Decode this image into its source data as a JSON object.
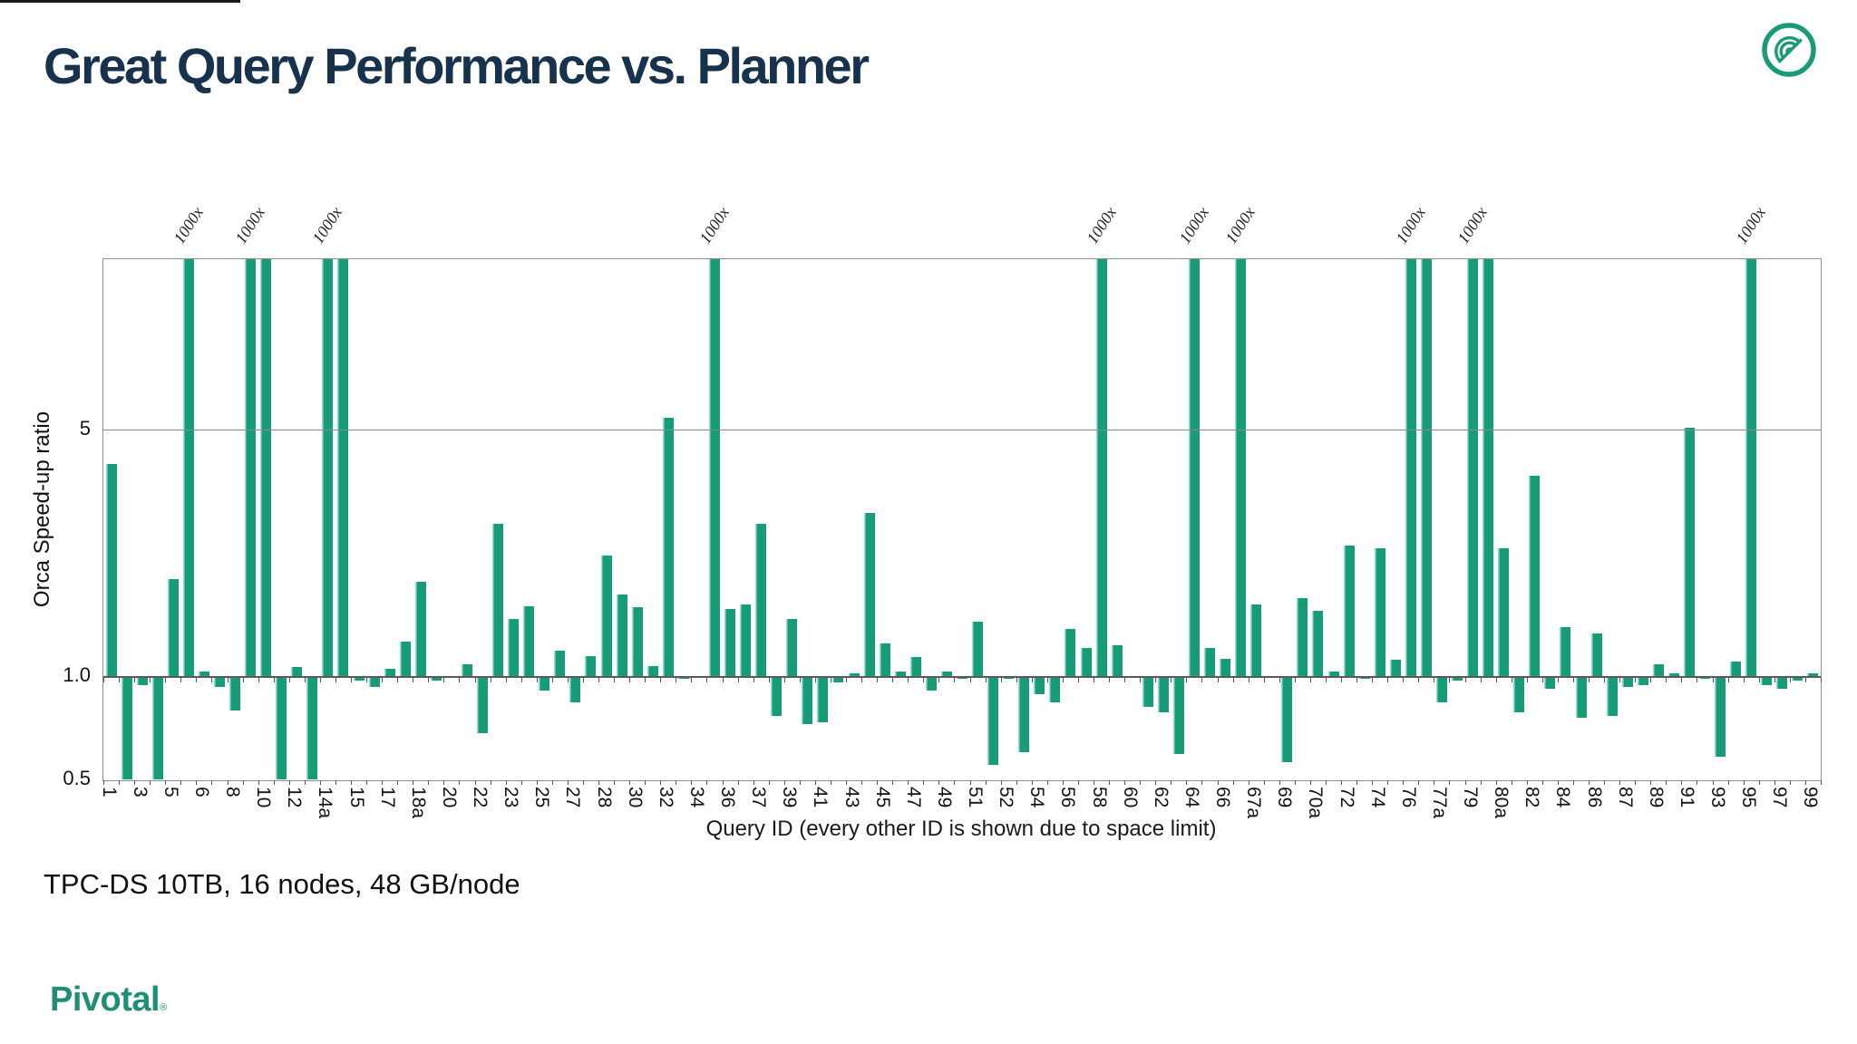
{
  "page": {
    "title": "Great Query Performance vs. Planner",
    "caption": "TPC-DS 10TB, 16 nodes, 48 GB/node",
    "brand": "Pivotal",
    "brand_reg": "®"
  },
  "colors": {
    "bar": "#189c78",
    "bar_edge_highlight": "#90e2cb",
    "title_text": "#17324d",
    "brand_text": "#1e8e74",
    "logo_teal": "#1a9b78",
    "axis_border": "#909090",
    "gridline": "#8a8a8a",
    "baseline_line": "#5a5a5a"
  },
  "chart_data": {
    "type": "bar",
    "title": "",
    "xlabel": "Query ID (every other ID is shown due to space limit)",
    "ylabel": "Orca Speed-up ratio",
    "yscale": "log",
    "ylim": [
      0.5,
      15.3
    ],
    "baseline": 1.0,
    "grid": "horizontal lines at y=5 and y=1.0, outer box border",
    "legend": "none",
    "yticks": [
      {
        "v": 5,
        "label": "5"
      },
      {
        "v": 1,
        "label": "1.0"
      },
      {
        "v": 0.5,
        "label": "0.5"
      }
    ],
    "clipped_value": 1000,
    "clipped_annotation": "1000x",
    "note": "bars = [query_id_label_or_empty, speedup_value, flag]; flag c=bar clipped at top (~1000x), a=1000x text annotation above bar; only every other bar is labeled",
    "bars": [
      [
        "1",
        4.0,
        ""
      ],
      [
        "",
        0.51,
        ""
      ],
      [
        "3",
        0.94,
        ""
      ],
      [
        "",
        0.51,
        ""
      ],
      [
        "5",
        1.88,
        ""
      ],
      [
        "",
        1000,
        "ca"
      ],
      [
        "6",
        1.03,
        ""
      ],
      [
        "",
        0.93,
        ""
      ],
      [
        "8",
        0.8,
        ""
      ],
      [
        "",
        1000,
        "ca"
      ],
      [
        "10",
        1000,
        "c"
      ],
      [
        "",
        0.51,
        ""
      ],
      [
        "12",
        1.06,
        ""
      ],
      [
        "",
        0.51,
        ""
      ],
      [
        "14a",
        1000,
        "ca"
      ],
      [
        "",
        1000,
        "c"
      ],
      [
        "15",
        0.97,
        ""
      ],
      [
        "",
        0.93,
        ""
      ],
      [
        "17",
        1.05,
        ""
      ],
      [
        "",
        1.25,
        ""
      ],
      [
        "18a",
        1.85,
        ""
      ],
      [
        "",
        0.97,
        ""
      ],
      [
        "20",
        0.99,
        ""
      ],
      [
        "",
        1.08,
        ""
      ],
      [
        "22",
        0.69,
        ""
      ],
      [
        "",
        2.7,
        ""
      ],
      [
        "23",
        1.45,
        ""
      ],
      [
        "",
        1.58,
        ""
      ],
      [
        "25",
        0.91,
        ""
      ],
      [
        "",
        1.18,
        ""
      ],
      [
        "27",
        0.84,
        ""
      ],
      [
        "",
        1.14,
        ""
      ],
      [
        "28",
        2.2,
        ""
      ],
      [
        "",
        1.7,
        ""
      ],
      [
        "30",
        1.57,
        ""
      ],
      [
        "",
        1.07,
        ""
      ],
      [
        "32",
        5.4,
        ""
      ],
      [
        "",
        0.98,
        ""
      ],
      [
        "34",
        0.99,
        ""
      ],
      [
        "",
        1000,
        "ca"
      ],
      [
        "36",
        1.55,
        ""
      ],
      [
        "",
        1.6,
        ""
      ],
      [
        "37",
        2.7,
        ""
      ],
      [
        "",
        0.77,
        ""
      ],
      [
        "39",
        1.45,
        ""
      ],
      [
        "",
        0.73,
        ""
      ],
      [
        "41",
        0.74,
        ""
      ],
      [
        "",
        0.96,
        ""
      ],
      [
        "43",
        1.02,
        ""
      ],
      [
        "",
        2.9,
        ""
      ],
      [
        "45",
        1.24,
        ""
      ],
      [
        "",
        1.03,
        ""
      ],
      [
        "47",
        1.13,
        ""
      ],
      [
        "",
        0.91,
        ""
      ],
      [
        "49",
        1.03,
        ""
      ],
      [
        "",
        0.98,
        ""
      ],
      [
        "51",
        1.43,
        ""
      ],
      [
        "",
        0.56,
        ""
      ],
      [
        "52",
        0.98,
        ""
      ],
      [
        "",
        0.61,
        ""
      ],
      [
        "54",
        0.89,
        ""
      ],
      [
        "",
        0.84,
        ""
      ],
      [
        "56",
        1.36,
        ""
      ],
      [
        "",
        1.2,
        ""
      ],
      [
        "58",
        1000,
        "ca"
      ],
      [
        "",
        1.22,
        ""
      ],
      [
        "60",
        1.0,
        ""
      ],
      [
        "",
        0.82,
        ""
      ],
      [
        "62",
        0.79,
        ""
      ],
      [
        "",
        0.6,
        ""
      ],
      [
        "64",
        1000,
        "ca"
      ],
      [
        "",
        1.2,
        ""
      ],
      [
        "66",
        1.12,
        ""
      ],
      [
        "",
        1000,
        "ca"
      ],
      [
        "67a",
        1.6,
        ""
      ],
      [
        "",
        1.0,
        ""
      ],
      [
        "69",
        0.57,
        ""
      ],
      [
        "",
        1.66,
        ""
      ],
      [
        "70a",
        1.53,
        ""
      ],
      [
        "",
        1.03,
        ""
      ],
      [
        "72",
        2.35,
        ""
      ],
      [
        "",
        0.98,
        ""
      ],
      [
        "74",
        2.3,
        ""
      ],
      [
        "",
        1.11,
        ""
      ],
      [
        "76",
        1000,
        "ca"
      ],
      [
        "",
        1000,
        "c"
      ],
      [
        "77a",
        0.84,
        ""
      ],
      [
        "",
        0.97,
        ""
      ],
      [
        "79",
        1000,
        "ca"
      ],
      [
        "",
        1000,
        "c"
      ],
      [
        "80a",
        2.3,
        ""
      ],
      [
        "",
        0.79,
        ""
      ],
      [
        "82",
        3.7,
        ""
      ],
      [
        "",
        0.92,
        ""
      ],
      [
        "84",
        1.38,
        ""
      ],
      [
        "",
        0.76,
        ""
      ],
      [
        "86",
        1.32,
        ""
      ],
      [
        "",
        0.77,
        ""
      ],
      [
        "87",
        0.93,
        ""
      ],
      [
        "",
        0.94,
        ""
      ],
      [
        "89",
        1.08,
        ""
      ],
      [
        "",
        1.02,
        ""
      ],
      [
        "91",
        5.05,
        ""
      ],
      [
        "",
        0.98,
        ""
      ],
      [
        "93",
        0.59,
        ""
      ],
      [
        "",
        1.1,
        ""
      ],
      [
        "95",
        1000,
        "ca"
      ],
      [
        "",
        0.94,
        ""
      ],
      [
        "97",
        0.92,
        ""
      ],
      [
        "",
        0.97,
        ""
      ],
      [
        "99",
        1.02,
        ""
      ]
    ]
  }
}
